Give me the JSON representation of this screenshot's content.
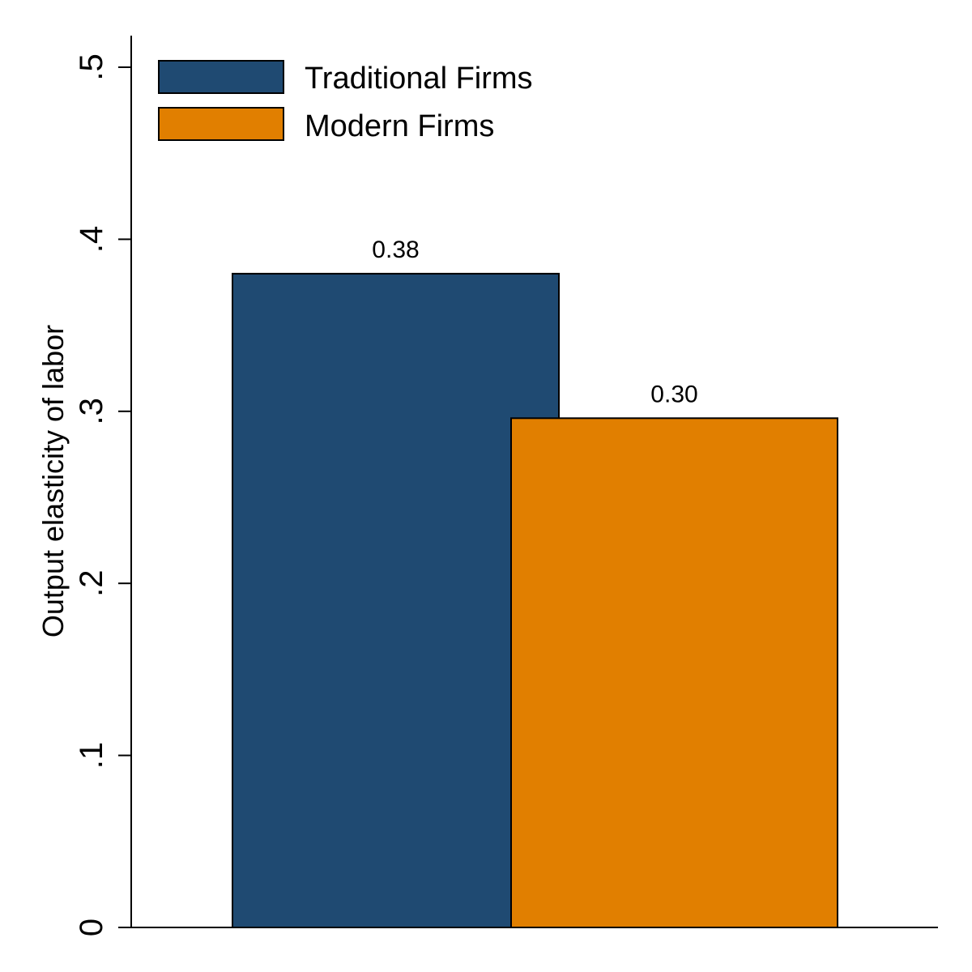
{
  "chart_data": {
    "type": "bar",
    "title": "",
    "xlabel": "",
    "ylabel": "Output elasticity of labor",
    "ylim": [
      0,
      0.52
    ],
    "yticks": [
      {
        "value": 0,
        "label": "0"
      },
      {
        "value": 0.1,
        "label": ".1"
      },
      {
        "value": 0.2,
        "label": ".2"
      },
      {
        "value": 0.3,
        "label": ".3"
      },
      {
        "value": 0.4,
        "label": ".4"
      },
      {
        "value": 0.5,
        "label": ".5"
      }
    ],
    "grid": false,
    "legend_position": "top-left",
    "series": [
      {
        "name": "Traditional Firms",
        "value": 0.38,
        "data_label": "0.38",
        "color": "#1f4a72"
      },
      {
        "name": "Modern Firms",
        "value": 0.296,
        "data_label": "0.30",
        "color": "#e17f00"
      }
    ]
  }
}
